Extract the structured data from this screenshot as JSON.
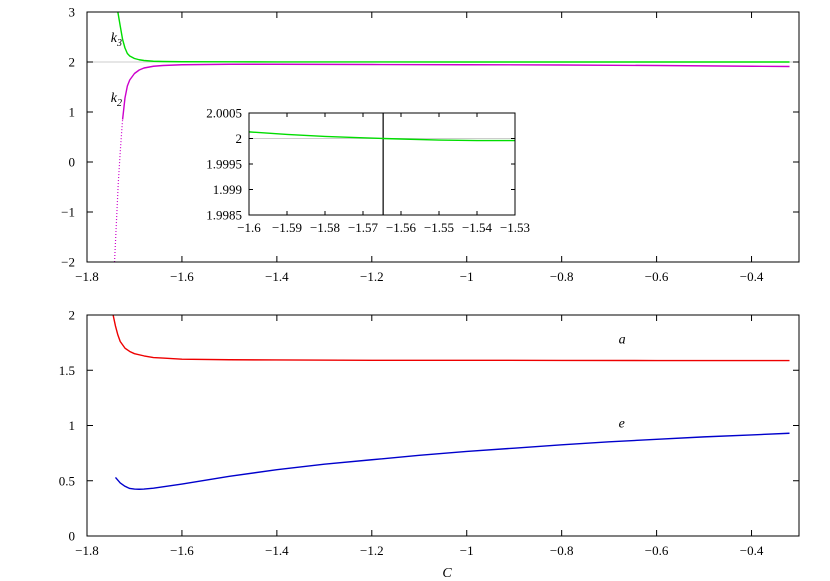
{
  "xlabel": "C",
  "chart_data": [
    {
      "id": "top",
      "type": "line",
      "xlim": [
        -1.8,
        -0.3
      ],
      "ylim": [
        -2,
        3
      ],
      "xticks": [
        -1.8,
        -1.6,
        -1.4,
        -1.2,
        -1,
        -0.8,
        -0.6,
        -0.4
      ],
      "xtick_labels": [
        "−1.8",
        "−1.6",
        "−1.4",
        "−1.2",
        "−1",
        "−0.8",
        "−0.6",
        "−0.4"
      ],
      "yticks": [
        -2,
        -1,
        0,
        1,
        2,
        3
      ],
      "ytick_labels": [
        "−2",
        "−1",
        "0",
        "1",
        "2",
        "3"
      ],
      "grid": false,
      "reference_lines": [
        {
          "y": 2,
          "color": "#cccccc"
        }
      ],
      "series": [
        {
          "name": "k3",
          "color": "#00dd00",
          "style": "solid",
          "x": [
            -1.735,
            -1.73,
            -1.725,
            -1.72,
            -1.715,
            -1.71,
            -1.7,
            -1.69,
            -1.68,
            -1.66,
            -1.64,
            -1.6,
            -1.5,
            -1.4,
            -1.2,
            -1.0,
            -0.8,
            -0.6,
            -0.4,
            -0.32
          ],
          "y": [
            3.0,
            2.72,
            2.45,
            2.28,
            2.17,
            2.12,
            2.07,
            2.045,
            2.03,
            2.015,
            2.01,
            2.005,
            2.003,
            2.002,
            2.001,
            2.0,
            2.0,
            2.0,
            2.0,
            2.0
          ]
        },
        {
          "name": "k2",
          "color": "#cc00cc",
          "style": "solid",
          "x": [
            -1.725,
            -1.72,
            -1.715,
            -1.71,
            -1.7,
            -1.69,
            -1.68,
            -1.66,
            -1.64,
            -1.6,
            -1.5,
            -1.4,
            -1.2,
            -1.0,
            -0.8,
            -0.6,
            -0.4,
            -0.32
          ],
          "y": [
            0.85,
            1.28,
            1.52,
            1.64,
            1.77,
            1.84,
            1.88,
            1.915,
            1.93,
            1.945,
            1.955,
            1.955,
            1.95,
            1.945,
            1.94,
            1.93,
            1.915,
            1.91
          ]
        },
        {
          "name": "k2-dotted",
          "color": "#cc00cc",
          "style": "dotted",
          "x": [
            -1.742,
            -1.738,
            -1.734,
            -1.73,
            -1.727,
            -1.725
          ],
          "y": [
            -2.0,
            -1.2,
            -0.4,
            0.2,
            0.6,
            0.85
          ]
        }
      ],
      "annotations": [
        {
          "text": "k",
          "sub": "3",
          "x": -1.75,
          "y": 2.4
        },
        {
          "text": "k",
          "sub": "2",
          "x": -1.75,
          "y": 1.2
        }
      ]
    },
    {
      "id": "inset",
      "type": "line",
      "xlim": [
        -1.6,
        -1.53
      ],
      "ylim": [
        1.9985,
        2.0005
      ],
      "xticks": [
        -1.6,
        -1.59,
        -1.58,
        -1.57,
        -1.56,
        -1.55,
        -1.54,
        -1.53
      ],
      "xtick_labels": [
        "−1.6",
        "−1.59",
        "−1.58",
        "−1.57",
        "−1.56",
        "−1.55",
        "−1.54",
        "−1.53"
      ],
      "yticks": [
        1.9985,
        1.999,
        1.9995,
        2,
        2.0005
      ],
      "ytick_labels": [
        "1.9985",
        "1.999",
        "1.9995",
        "2",
        "2.0005"
      ],
      "grid": false,
      "reference_lines": [
        {
          "y": 2,
          "color": "#cccccc"
        }
      ],
      "vertical_lines": [
        {
          "x": -1.5647,
          "color": "#000000"
        }
      ],
      "series": [
        {
          "name": "k3",
          "color": "#00dd00",
          "style": "solid",
          "x": [
            -1.6,
            -1.59,
            -1.58,
            -1.57,
            -1.5647,
            -1.56,
            -1.55,
            -1.54,
            -1.53
          ],
          "y": [
            2.00013,
            2.00008,
            2.00004,
            2.000013,
            2.0,
            1.99999,
            1.99997,
            1.99996,
            1.99996
          ]
        }
      ]
    },
    {
      "id": "bottom",
      "type": "line",
      "xlim": [
        -1.8,
        -0.3
      ],
      "ylim": [
        0,
        2
      ],
      "xticks": [
        -1.8,
        -1.6,
        -1.4,
        -1.2,
        -1,
        -0.8,
        -0.6,
        -0.4
      ],
      "xtick_labels": [
        "−1.8",
        "−1.6",
        "−1.4",
        "−1.2",
        "−1",
        "−0.8",
        "−0.6",
        "−0.4"
      ],
      "yticks": [
        0,
        0.5,
        1,
        1.5,
        2
      ],
      "ytick_labels": [
        "0",
        "0.5",
        "1",
        "1.5",
        "2"
      ],
      "grid": false,
      "series": [
        {
          "name": "a",
          "color": "#ee0000",
          "style": "solid",
          "x": [
            -1.745,
            -1.74,
            -1.735,
            -1.73,
            -1.72,
            -1.71,
            -1.7,
            -1.68,
            -1.66,
            -1.64,
            -1.6,
            -1.5,
            -1.4,
            -1.2,
            -1.0,
            -0.8,
            -0.6,
            -0.4,
            -0.32
          ],
          "y": [
            2.0,
            1.9,
            1.82,
            1.76,
            1.7,
            1.67,
            1.65,
            1.63,
            1.615,
            1.61,
            1.6,
            1.595,
            1.593,
            1.59,
            1.59,
            1.589,
            1.588,
            1.588,
            1.588
          ]
        },
        {
          "name": "e",
          "color": "#0000cc",
          "style": "solid",
          "x": [
            -1.74,
            -1.73,
            -1.72,
            -1.71,
            -1.7,
            -1.69,
            -1.68,
            -1.66,
            -1.64,
            -1.6,
            -1.55,
            -1.5,
            -1.4,
            -1.3,
            -1.2,
            -1.1,
            -1.0,
            -0.9,
            -0.8,
            -0.7,
            -0.6,
            -0.5,
            -0.4,
            -0.32
          ],
          "y": [
            0.53,
            0.48,
            0.45,
            0.43,
            0.425,
            0.423,
            0.425,
            0.433,
            0.445,
            0.47,
            0.505,
            0.54,
            0.6,
            0.65,
            0.69,
            0.73,
            0.765,
            0.795,
            0.825,
            0.852,
            0.875,
            0.897,
            0.915,
            0.93
          ]
        }
      ],
      "annotations": [
        {
          "text": "a",
          "x": -0.68,
          "y": 1.74
        },
        {
          "text": "e",
          "x": -0.68,
          "y": 0.98
        }
      ]
    }
  ]
}
